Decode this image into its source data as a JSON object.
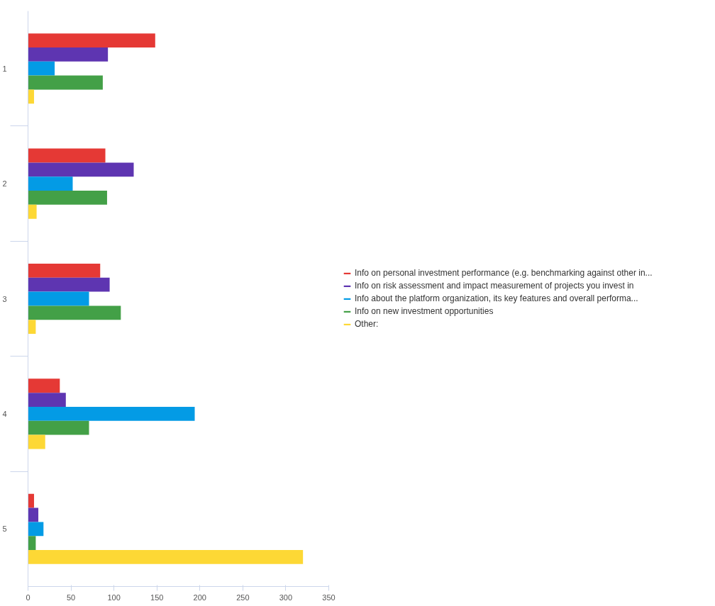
{
  "chart_data": {
    "type": "bar",
    "orientation": "horizontal",
    "categories": [
      "1",
      "2",
      "3",
      "4",
      "5"
    ],
    "series": [
      {
        "name": "Info on personal investment performance (e.g. benchmarking against other in...",
        "color": "#e53935",
        "values": [
          148,
          90,
          84,
          37,
          7
        ]
      },
      {
        "name": "Info on risk assessment and impact measurement of projects you invest in",
        "color": "#5e35b1",
        "values": [
          93,
          123,
          95,
          44,
          12
        ]
      },
      {
        "name": "Info about the platform organization, its key features and overall performa...",
        "color": "#039be5",
        "values": [
          31,
          52,
          71,
          194,
          18
        ]
      },
      {
        "name": "Info on new investment opportunities",
        "color": "#43a047",
        "values": [
          87,
          92,
          108,
          71,
          9
        ]
      },
      {
        "name": "Other:",
        "color": "#fdd835",
        "values": [
          7,
          10,
          9,
          20,
          320
        ]
      }
    ],
    "xlim": [
      0,
      350
    ],
    "xticks": [
      0,
      50,
      100,
      150,
      200,
      250,
      300,
      350
    ],
    "legend": "right"
  }
}
